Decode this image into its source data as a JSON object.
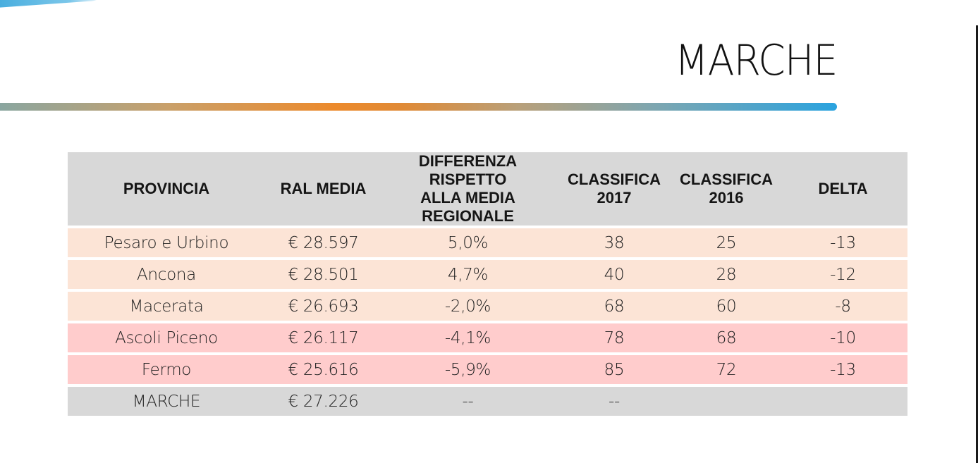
{
  "page": {
    "title": "MARCHE"
  },
  "table": {
    "headers": [
      "PROVINCIA",
      "RAL MEDIA",
      "DIFFERENZA RISPETTO\nALLA MEDIA REGIONALE",
      "CLASSIFICA\n2017",
      "CLASSIFICA\n2016",
      "DELTA"
    ],
    "rows": [
      {
        "provincia": "Pesaro e Urbino",
        "ral": "€ 28.597",
        "diff": "5,0%",
        "c2017": "38",
        "c2016": "25",
        "delta": "-13"
      },
      {
        "provincia": "Ancona",
        "ral": "€ 28.501",
        "diff": "4,7%",
        "c2017": "40",
        "c2016": "28",
        "delta": "-12"
      },
      {
        "provincia": "Macerata",
        "ral": "€ 26.693",
        "diff": "-2,0%",
        "c2017": "68",
        "c2016": "60",
        "delta": "-8"
      },
      {
        "provincia": "Ascoli Piceno",
        "ral": "€ 26.117",
        "diff": "-4,1%",
        "c2017": "78",
        "c2016": "68",
        "delta": "-10"
      },
      {
        "provincia": "Fermo",
        "ral": "€ 25.616",
        "diff": "-5,9%",
        "c2017": "85",
        "c2016": "72",
        "delta": "-13"
      }
    ],
    "total": {
      "provincia": "MARCHE",
      "ral": "€ 27.226",
      "diff": "--",
      "c2017": "--",
      "c2016": "",
      "delta": ""
    }
  },
  "colors": {
    "header_bg": "#d8d8d8",
    "row_above_average": "#fce4d6",
    "row_below_average": "#ffcccc",
    "accent_orange": "#ec8a2c",
    "accent_blue": "#2aa3df"
  }
}
